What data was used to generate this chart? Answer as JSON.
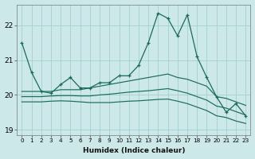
{
  "xlabel": "Humidex (Indice chaleur)",
  "bg_color": "#cce8e8",
  "grid_color": "#99cccc",
  "line_color": "#1a6b5a",
  "xlim": [
    -0.5,
    23.5
  ],
  "ylim": [
    18.85,
    22.6
  ],
  "yticks": [
    19,
    20,
    21,
    22
  ],
  "xticks": [
    0,
    1,
    2,
    3,
    4,
    5,
    6,
    7,
    8,
    9,
    10,
    11,
    12,
    13,
    14,
    15,
    16,
    17,
    18,
    19,
    20,
    21,
    22,
    23
  ],
  "main_y": [
    21.5,
    20.65,
    20.1,
    20.05,
    20.3,
    20.5,
    20.2,
    20.2,
    20.35,
    20.35,
    20.55,
    20.55,
    20.85,
    21.5,
    22.35,
    22.2,
    21.7,
    22.3,
    21.1,
    20.5,
    19.95,
    19.5,
    19.75,
    19.4
  ],
  "smooth1": [
    20.1,
    20.1,
    20.1,
    20.1,
    20.15,
    20.15,
    20.15,
    20.2,
    20.25,
    20.3,
    20.35,
    20.4,
    20.45,
    20.5,
    20.55,
    20.6,
    20.5,
    20.45,
    20.35,
    20.25,
    19.95,
    19.9,
    19.8,
    19.7
  ],
  "smooth2": [
    19.95,
    19.95,
    19.95,
    19.97,
    19.98,
    19.98,
    19.97,
    19.97,
    20.0,
    20.02,
    20.05,
    20.08,
    20.1,
    20.12,
    20.15,
    20.18,
    20.12,
    20.05,
    19.95,
    19.85,
    19.68,
    19.62,
    19.52,
    19.42
  ],
  "smooth3": [
    19.8,
    19.8,
    19.8,
    19.82,
    19.83,
    19.82,
    19.8,
    19.78,
    19.78,
    19.78,
    19.8,
    19.82,
    19.83,
    19.85,
    19.87,
    19.88,
    19.82,
    19.75,
    19.65,
    19.55,
    19.4,
    19.35,
    19.25,
    19.18
  ]
}
